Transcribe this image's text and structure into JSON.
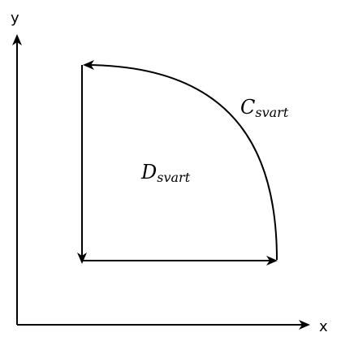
{
  "axes": {
    "x_label": "x",
    "y_label": "y"
  },
  "region": {
    "main": "D",
    "sub": "svart"
  },
  "curve": {
    "main": "C",
    "sub": "svart"
  },
  "colors": {
    "stroke": "#000000",
    "background": "#ffffff"
  }
}
